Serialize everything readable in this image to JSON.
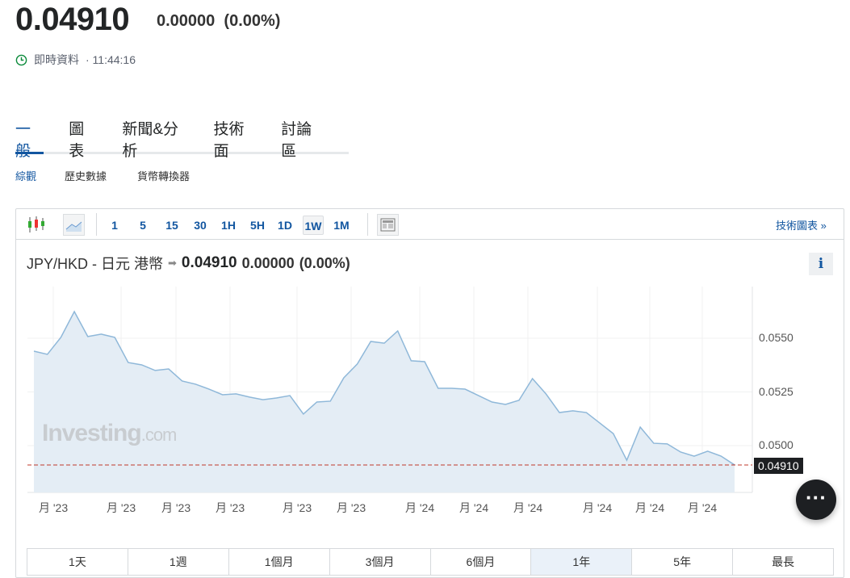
{
  "header": {
    "price": "0.04910",
    "change": "0.00000",
    "change_pct": "(0.00%)",
    "realtime_label": "即時資料",
    "time": "· 11:44:16"
  },
  "tabs": [
    {
      "label": "一般",
      "active": true
    },
    {
      "label": "圖表"
    },
    {
      "label": "新聞&分析"
    },
    {
      "label": "技術面"
    },
    {
      "label": "討論區"
    }
  ],
  "subnav": [
    "綜觀",
    "歷史數據",
    "貨幣轉換器"
  ],
  "toolbar": {
    "intervals": [
      "1",
      "5",
      "15",
      "30",
      "1H",
      "5H",
      "1D",
      "1W",
      "1M"
    ],
    "selected": "1W",
    "tech_chart_link": "技術圖表 »"
  },
  "chart_header": {
    "pair": "JPY/HKD - 日元 港幣",
    "price": "0.04910",
    "change": "0.00000",
    "change_pct": "(0.00%)",
    "info": "i"
  },
  "watermark": {
    "brand": "Investing",
    "suffix": ".com"
  },
  "colors": {
    "accent": "#1256a0",
    "line": "#8fb8d9",
    "area": "#e4edf5",
    "last_price_line": "#c0392b"
  },
  "chart_data": {
    "type": "area",
    "y_ticks": [
      "0.0550",
      "0.0525",
      "0.0500"
    ],
    "ylim": [
      0.0484,
      0.0575
    ],
    "last_price_label": "0.04910",
    "x_tick_labels": [
      "月 '23",
      "月 '23",
      "月 '23",
      "月 '23",
      "月 '23",
      "月 '23",
      "月 '24",
      "月 '24",
      "月 '24",
      "月 '24",
      "月 '24",
      "月 '24"
    ],
    "values": [
      0.0544,
      0.05425,
      0.05504,
      0.05624,
      0.05508,
      0.05519,
      0.05504,
      0.05387,
      0.05376,
      0.0535,
      0.05357,
      0.05301,
      0.05286,
      0.05263,
      0.05237,
      0.05241,
      0.05226,
      0.05214,
      0.05222,
      0.05233,
      0.05147,
      0.05203,
      0.05207,
      0.05316,
      0.0538,
      0.05485,
      0.05477,
      0.05534,
      0.05395,
      0.05391,
      0.05267,
      0.05267,
      0.05263,
      0.05233,
      0.05203,
      0.05192,
      0.05211,
      0.05312,
      0.05241,
      0.05154,
      0.05162,
      0.05154,
      0.05105,
      0.05056,
      0.04932,
      0.05086,
      0.05011,
      0.05008,
      0.0497,
      0.04951,
      0.04974,
      0.04951,
      0.0491
    ]
  },
  "ranges": [
    "1天",
    "1週",
    "1個月",
    "3個月",
    "6個月",
    "1年",
    "5年",
    "最長"
  ],
  "selected_range": "1年"
}
